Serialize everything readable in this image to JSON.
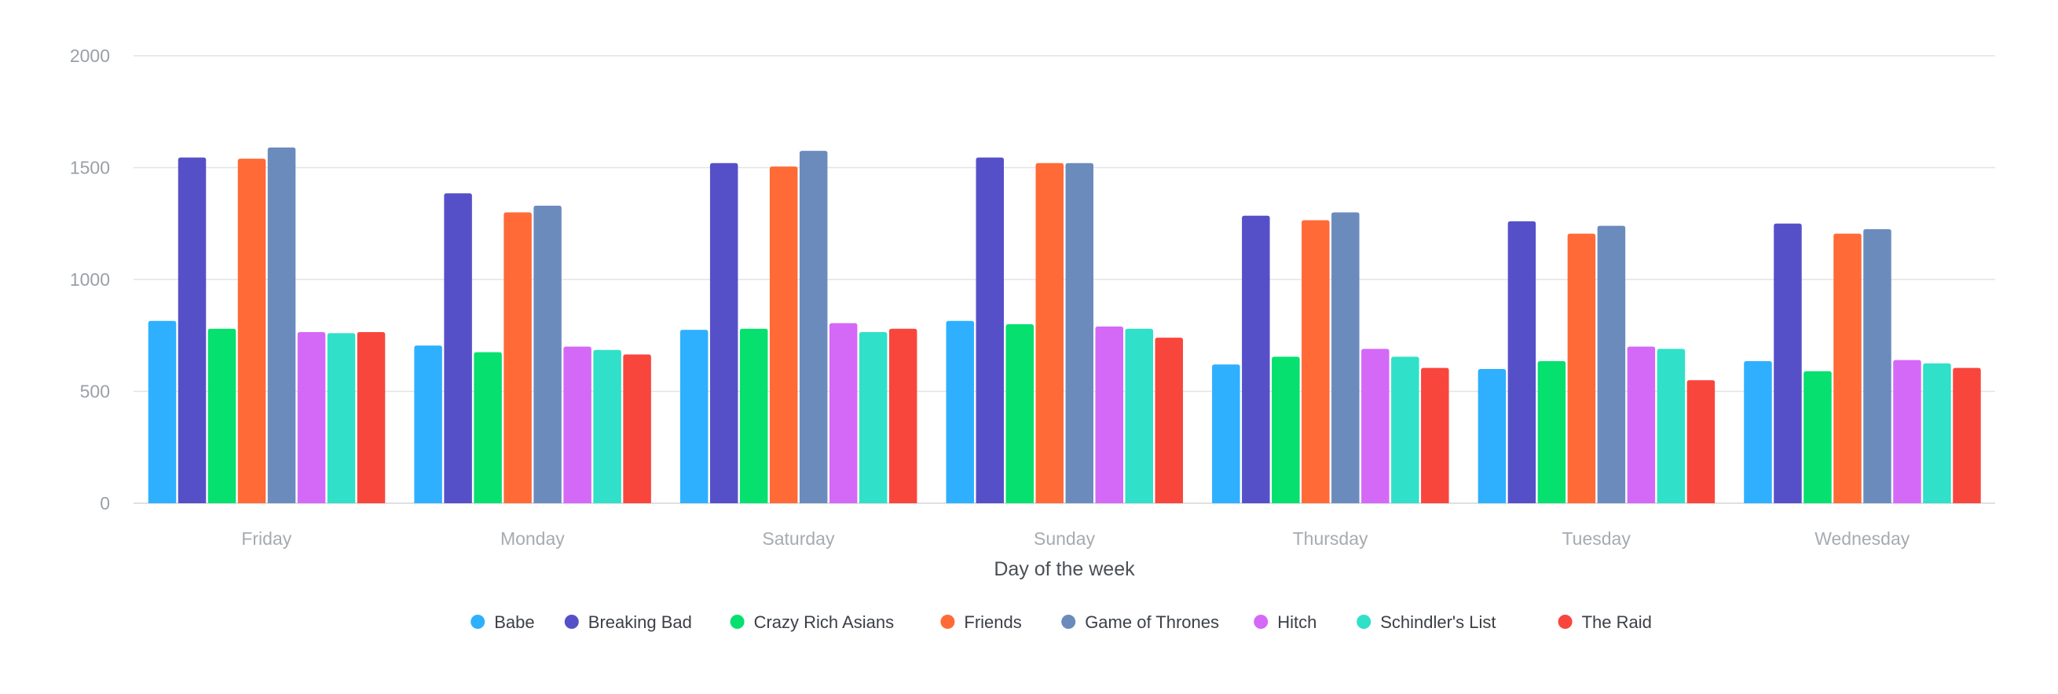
{
  "chart_data": {
    "type": "bar",
    "title": "",
    "xlabel": "Day of the week",
    "ylabel": "",
    "ylim": [
      0,
      2000
    ],
    "yticks": [
      0,
      500,
      1000,
      1500,
      2000
    ],
    "grid": true,
    "legend_position": "bottom",
    "categories": [
      "Friday",
      "Monday",
      "Saturday",
      "Sunday",
      "Thursday",
      "Tuesday",
      "Wednesday"
    ],
    "series": [
      {
        "name": "Babe",
        "color": "#2eb0ff",
        "values": [
          815,
          705,
          775,
          815,
          620,
          600,
          635
        ]
      },
      {
        "name": "Breaking Bad",
        "color": "#5650c8",
        "values": [
          1545,
          1385,
          1520,
          1545,
          1285,
          1260,
          1250
        ]
      },
      {
        "name": "Crazy Rich Asians",
        "color": "#05e06f",
        "values": [
          780,
          675,
          780,
          800,
          655,
          635,
          590
        ]
      },
      {
        "name": "Friends",
        "color": "#ff6a37",
        "values": [
          1540,
          1300,
          1505,
          1520,
          1265,
          1205,
          1205
        ]
      },
      {
        "name": "Game of Thrones",
        "color": "#6c8bbd",
        "values": [
          1590,
          1330,
          1575,
          1520,
          1300,
          1240,
          1225
        ]
      },
      {
        "name": "Hitch",
        "color": "#d469f7",
        "values": [
          765,
          700,
          805,
          790,
          690,
          700,
          640
        ]
      },
      {
        "name": "Schindler's List",
        "color": "#30e0c8",
        "values": [
          760,
          685,
          765,
          780,
          655,
          690,
          625
        ]
      },
      {
        "name": "The Raid",
        "color": "#f9463d",
        "values": [
          765,
          665,
          780,
          740,
          605,
          550,
          605
        ]
      }
    ]
  }
}
